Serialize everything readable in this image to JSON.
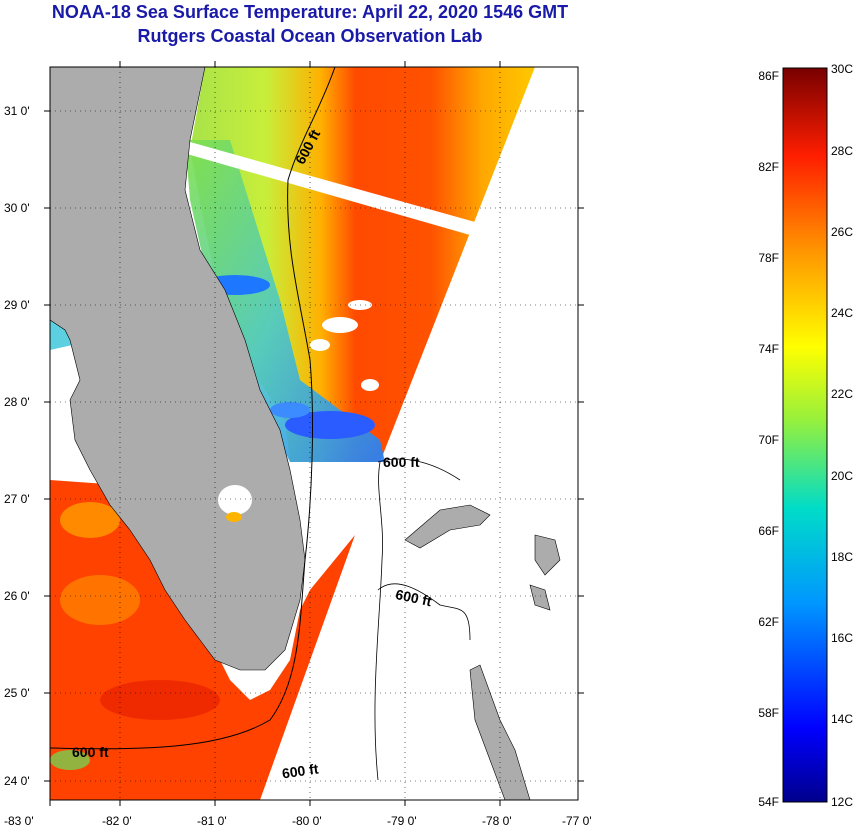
{
  "title": {
    "line1": "NOAA-18 Sea Surface Temperature:  April 22, 2020 1546 GMT",
    "line2": "Rutgers Coastal Ocean Observation Lab"
  },
  "map": {
    "lat_labels": [
      "31 0'",
      "30 0'",
      "29 0'",
      "28 0'",
      "27 0'",
      "26 0'",
      "25 0'",
      "24 0'"
    ],
    "lon_labels": [
      "-83 0'",
      "-82 0'",
      "-81 0'",
      "-80 0'",
      "-79 0'",
      "-78 0'",
      "-77 0'"
    ],
    "contour_labels": [
      "600 ft",
      "600 ft",
      "600 ft",
      "600 ft",
      "600 ft"
    ]
  },
  "colorbar": {
    "fahrenheit": [
      "86F",
      "82F",
      "78F",
      "74F",
      "70F",
      "66F",
      "62F",
      "58F",
      "54F"
    ],
    "celsius": [
      "30C",
      "28C",
      "26C",
      "24C",
      "22C",
      "20C",
      "18C",
      "16C",
      "14C",
      "12C"
    ]
  },
  "colors": {
    "title": "#1a1aa8",
    "land": "#acacac",
    "warm": "#ff3a00",
    "hot": "#e61a00",
    "mild": "#ffa500",
    "cool": "#a8e830",
    "cold": "#1e6cff"
  }
}
